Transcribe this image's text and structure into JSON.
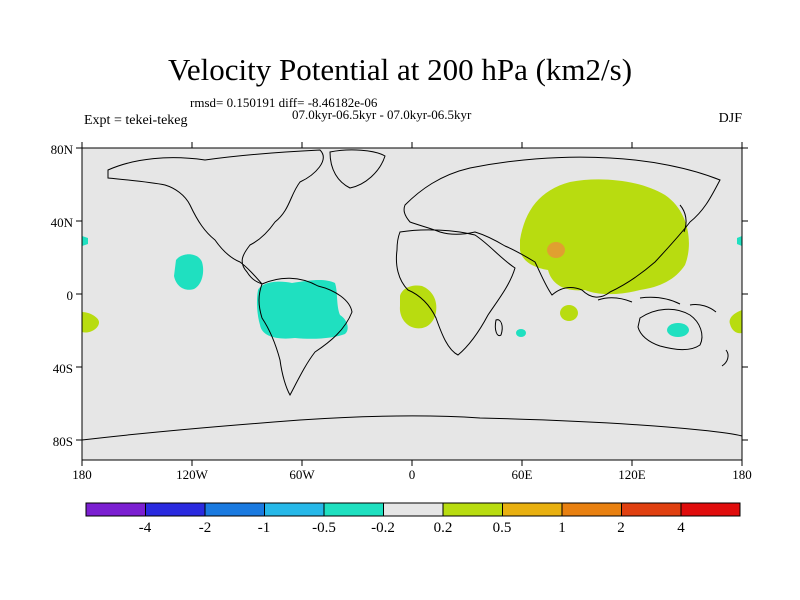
{
  "title": "Velocity Potential at 200 hPa (km2/s)",
  "stats_line": "rmsd= 0.150191 diff= -8.46182e-06",
  "period_line": "07.0kyr-06.5kyr - 07.0kyr-06.5kyr",
  "experiment": "Expt = tekei-tekeg",
  "season": "DJF",
  "lat_labels": [
    "80N",
    "40N",
    "0",
    "40S",
    "80S"
  ],
  "lon_labels": [
    "180",
    "120W",
    "60W",
    "0",
    "60E",
    "120E",
    "180"
  ],
  "colorbar": {
    "colors": [
      "#7b1fd1",
      "#2a2adf",
      "#1a7ae0",
      "#26b8e8",
      "#1fe0c0",
      "#e6e6e6",
      "#b8dc10",
      "#e8b010",
      "#e88010",
      "#e04010",
      "#e00c0c"
    ],
    "labels": [
      "-4",
      "-2",
      "-1",
      "-0.5",
      "-0.2",
      "0.2",
      "0.5",
      "1",
      "2",
      "4"
    ]
  },
  "map_colors": {
    "background": "#e6e6e6",
    "positive_small": "#b8dc10",
    "positive_mid": "#e0a030",
    "negative_small": "#1fe0c0"
  }
}
